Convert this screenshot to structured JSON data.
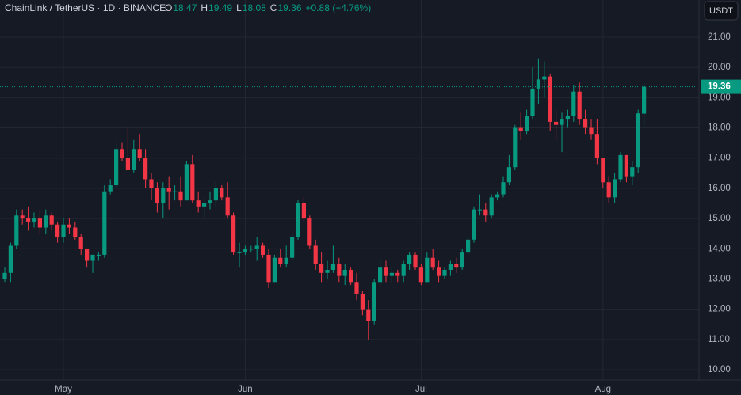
{
  "header": {
    "symbol": "ChainLink / TetherUS · 1D · BINANCE",
    "ohlc": [
      {
        "label": "O",
        "value": 18.47
      },
      {
        "label": "H",
        "value": 19.49
      },
      {
        "label": "L",
        "value": 18.08
      },
      {
        "label": "C",
        "value": 19.36
      }
    ],
    "change": "+0.88 (+4.76%)"
  },
  "currency": "USDT",
  "chart_data": {
    "type": "candlestick",
    "categories": [
      null,
      null,
      null,
      null,
      null,
      null,
      null,
      null,
      null,
      null,
      "May",
      null,
      null,
      null,
      null,
      null,
      null,
      null,
      null,
      null,
      null,
      null,
      null,
      null,
      null,
      null,
      null,
      null,
      null,
      null,
      null,
      null,
      null,
      null,
      null,
      null,
      null,
      null,
      null,
      null,
      null,
      "Jun",
      null,
      null,
      null,
      null,
      null,
      null,
      null,
      null,
      null,
      null,
      null,
      null,
      null,
      null,
      null,
      null,
      null,
      null,
      null,
      null,
      null,
      null,
      null,
      null,
      null,
      null,
      null,
      null,
      null,
      "Jul",
      null,
      null,
      null,
      null,
      null,
      null,
      null,
      null,
      null,
      null,
      null,
      null,
      null,
      null,
      null,
      null,
      null,
      null,
      null,
      null,
      null,
      null,
      null,
      null,
      null,
      null,
      null,
      null,
      null,
      null,
      "Aug",
      null,
      null,
      null,
      null,
      null,
      null,
      null
    ],
    "open": [
      13.0,
      13.2,
      14.1,
      15.1,
      15.0,
      14.9,
      15.0,
      14.7,
      15.1,
      14.8,
      14.4,
      14.8,
      14.7,
      14.4,
      14.0,
      13.6,
      13.8,
      13.8,
      15.9,
      16.1,
      17.3,
      17.0,
      16.6,
      17.3,
      17.0,
      16.3,
      16.0,
      15.5,
      16.0,
      15.9,
      15.9,
      15.6,
      16.8,
      15.6,
      15.4,
      15.5,
      15.6,
      16.0,
      15.7,
      15.1,
      13.9,
      13.9,
      14.0,
      14.0,
      14.1,
      13.8,
      12.9,
      13.7,
      13.5,
      13.7,
      14.4,
      15.5,
      15.0,
      14.1,
      13.5,
      13.2,
      13.3,
      13.5,
      13.1,
      13.3,
      12.9,
      12.5,
      12.0,
      11.6,
      12.9,
      13.4,
      13.1,
      13.2,
      13.1,
      13.5,
      13.8,
      13.4,
      12.9,
      13.7,
      13.4,
      13.1,
      13.3,
      13.5,
      13.4,
      13.9,
      14.3,
      15.3,
      15.3,
      15.1,
      15.7,
      15.8,
      16.2,
      16.7,
      18.0,
      17.9,
      18.4,
      19.3,
      19.6,
      19.7,
      18.2,
      18.1,
      18.3,
      18.4,
      19.2,
      18.3,
      18.0,
      17.8,
      17.0,
      16.2,
      15.7,
      16.3,
      17.1,
      16.4,
      16.7,
      18.47
    ],
    "high": [
      13.4,
      14.2,
      15.3,
      15.3,
      15.4,
      15.2,
      15.3,
      15.3,
      15.2,
      14.9,
      15.0,
      15.0,
      14.9,
      14.5,
      14.0,
      13.8,
      13.9,
      16.1,
      16.3,
      17.5,
      17.5,
      18.0,
      17.6,
      17.8,
      17.3,
      16.5,
      16.2,
      16.2,
      16.4,
      16.1,
      16.4,
      16.9,
      17.1,
      15.9,
      15.7,
      15.9,
      16.2,
      16.1,
      16.2,
      15.2,
      14.2,
      14.1,
      14.1,
      14.4,
      14.2,
      14.0,
      13.8,
      14.0,
      14.1,
      14.5,
      15.6,
      15.7,
      15.1,
      14.3,
      13.9,
      13.6,
      14.1,
      13.7,
      13.5,
      13.4,
      13.2,
      12.6,
      12.3,
      13.0,
      13.6,
      13.6,
      13.4,
      13.3,
      13.6,
      13.9,
      13.9,
      13.5,
      13.9,
      14.0,
      13.6,
      13.4,
      13.6,
      13.7,
      14.0,
      14.4,
      15.4,
      15.8,
      15.5,
      15.8,
      15.9,
      16.4,
      17.1,
      18.1,
      18.5,
      18.6,
      20.0,
      20.3,
      20.2,
      19.8,
      18.6,
      18.5,
      18.6,
      19.4,
      19.5,
      18.6,
      18.3,
      18.3,
      17.0,
      16.4,
      16.5,
      17.2,
      17.1,
      16.9,
      18.6,
      19.49
    ],
    "low": [
      12.9,
      12.9,
      14.0,
      14.8,
      14.6,
      14.7,
      14.5,
      14.5,
      14.6,
      14.2,
      14.2,
      14.5,
      14.3,
      13.8,
      13.4,
      13.2,
      13.6,
      13.7,
      15.8,
      16.0,
      16.9,
      16.6,
      16.5,
      16.9,
      16.0,
      15.6,
      15.2,
      15.0,
      15.3,
      15.6,
      15.4,
      15.6,
      15.5,
      15.2,
      15.0,
      15.3,
      15.4,
      15.6,
      15.0,
      13.8,
      13.4,
      13.8,
      13.9,
      13.6,
      13.7,
      12.7,
      12.9,
      13.4,
      13.4,
      13.6,
      14.3,
      14.9,
      14.0,
      13.3,
      12.9,
      13.0,
      13.2,
      12.9,
      12.8,
      12.8,
      12.3,
      11.8,
      11.0,
      11.5,
      12.8,
      12.9,
      12.9,
      12.9,
      12.9,
      13.3,
      13.3,
      12.8,
      12.9,
      13.3,
      12.9,
      13.0,
      13.1,
      13.2,
      13.3,
      13.8,
      14.2,
      15.1,
      14.9,
      15.0,
      15.6,
      15.7,
      16.1,
      16.6,
      17.6,
      17.8,
      18.3,
      18.8,
      19.0,
      17.9,
      17.6,
      17.2,
      18.0,
      18.2,
      18.1,
      17.8,
      17.6,
      16.8,
      16.0,
      15.5,
      15.5,
      16.2,
      16.2,
      16.1,
      16.5,
      18.08
    ],
    "close": [
      13.2,
      14.1,
      15.1,
      15.0,
      14.9,
      15.0,
      14.7,
      15.1,
      14.8,
      14.4,
      14.8,
      14.7,
      14.4,
      14.0,
      13.6,
      13.8,
      13.8,
      15.9,
      16.1,
      17.3,
      17.0,
      16.6,
      17.3,
      17.0,
      16.3,
      16.0,
      15.5,
      16.0,
      15.9,
      15.9,
      15.6,
      16.8,
      15.6,
      15.4,
      15.5,
      15.6,
      16.0,
      15.7,
      15.1,
      13.9,
      13.9,
      14.0,
      14.0,
      14.1,
      13.8,
      12.9,
      13.7,
      13.5,
      13.7,
      14.4,
      15.5,
      15.0,
      14.1,
      13.5,
      13.2,
      13.3,
      13.5,
      13.1,
      13.3,
      12.9,
      12.5,
      12.0,
      11.6,
      12.9,
      13.4,
      13.1,
      13.2,
      13.1,
      13.5,
      13.8,
      13.4,
      12.9,
      13.7,
      13.4,
      13.1,
      13.3,
      13.5,
      13.4,
      13.9,
      14.3,
      15.3,
      15.3,
      15.1,
      15.7,
      15.8,
      16.2,
      16.7,
      18.0,
      17.9,
      18.4,
      19.3,
      19.6,
      19.7,
      18.2,
      18.1,
      18.3,
      18.4,
      19.2,
      18.3,
      18.0,
      17.8,
      17.0,
      16.2,
      15.7,
      16.3,
      17.1,
      16.4,
      16.7,
      18.48,
      19.36
    ],
    "up_color": "#089981",
    "down_color": "#f23645",
    "ylim": [
      9.66,
      22.23
    ],
    "yticks": [
      {
        "value": 10,
        "label": "10.00"
      },
      {
        "value": 11,
        "label": "11.00"
      },
      {
        "value": 12,
        "label": "12.00"
      },
      {
        "value": 13,
        "label": "13.00"
      },
      {
        "value": 14,
        "label": "14.00"
      },
      {
        "value": 15,
        "label": "15.00"
      },
      {
        "value": 16,
        "label": "16.00"
      },
      {
        "value": 17,
        "label": "17.00"
      },
      {
        "value": 18,
        "label": "18.00"
      },
      {
        "value": 19,
        "label": "19.00"
      },
      {
        "value": 20,
        "label": "20.00"
      },
      {
        "value": 21,
        "label": "21.00"
      }
    ],
    "grid": true
  }
}
